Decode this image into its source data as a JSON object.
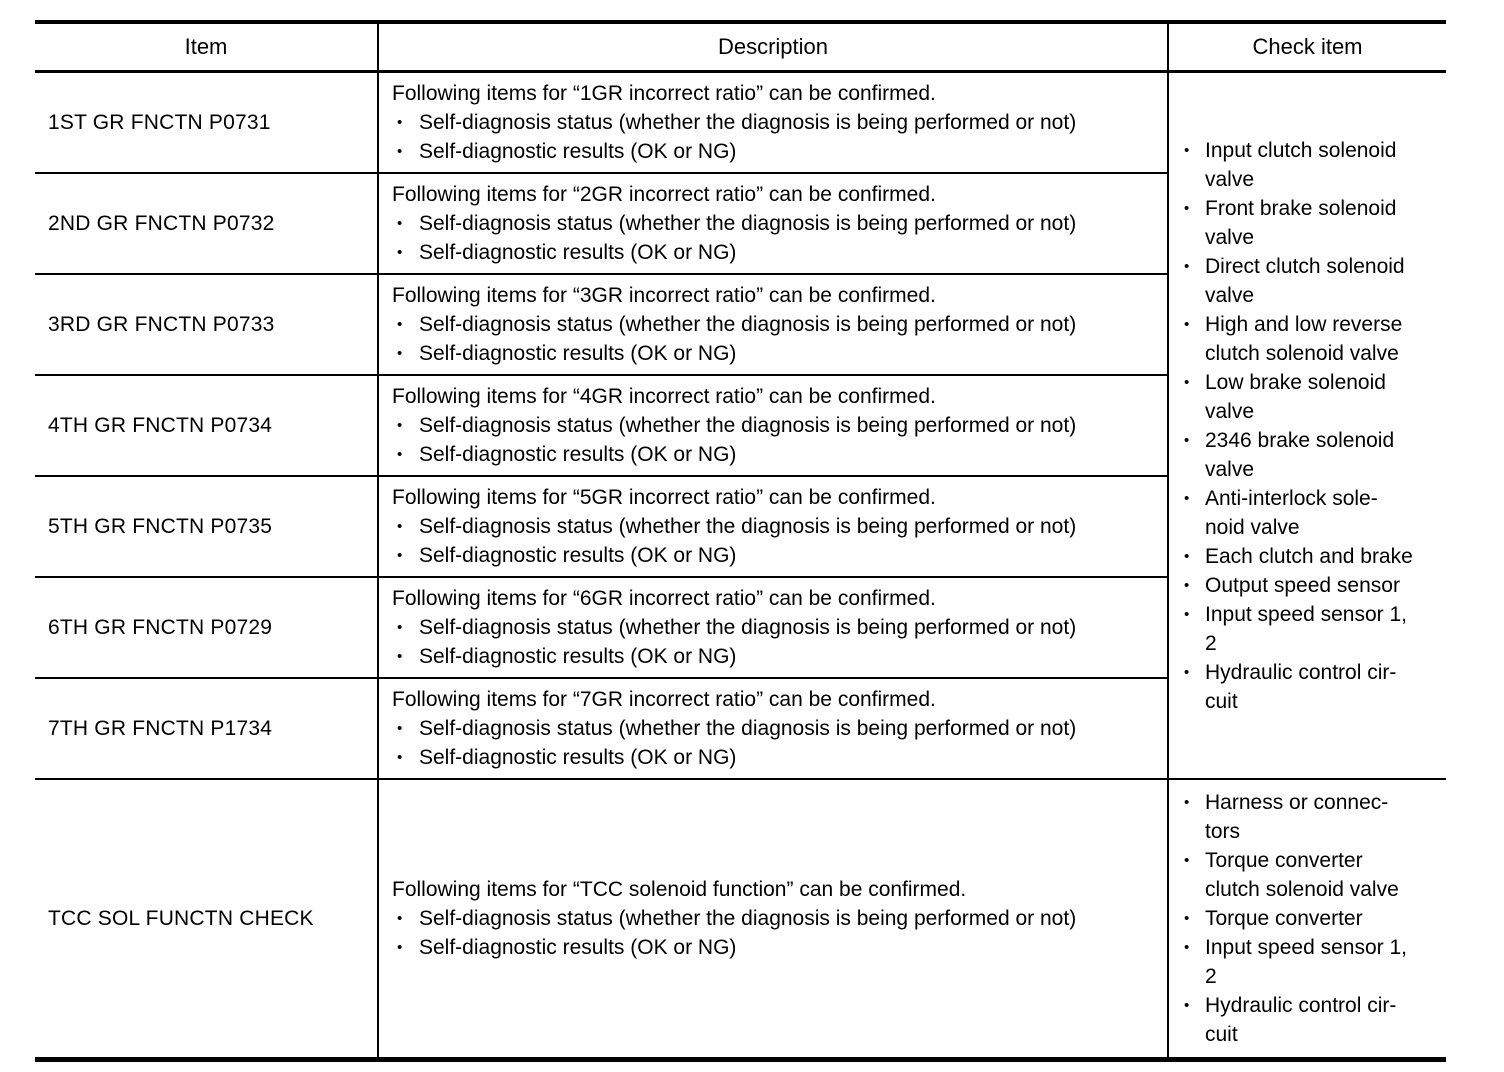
{
  "bullet_char": "•",
  "table": {
    "headers": {
      "item": "Item",
      "description": "Description",
      "check": "Check item"
    },
    "common_bullets": [
      "Self-diagnosis status (whether the diagnosis is being performed or not)",
      "Self-diagnostic results (OK or NG)"
    ],
    "rows": [
      {
        "item": "1ST GR FNCTN P0731",
        "desc_intro": "Following items for “1GR incorrect ratio” can be confirmed."
      },
      {
        "item": "2ND GR FNCTN P0732",
        "desc_intro": "Following items for “2GR incorrect ratio” can be confirmed."
      },
      {
        "item": "3RD GR FNCTN P0733",
        "desc_intro": "Following items for “3GR incorrect ratio” can be confirmed."
      },
      {
        "item": "4TH GR FNCTN P0734",
        "desc_intro": "Following items for “4GR incorrect ratio” can be confirmed."
      },
      {
        "item": "5TH GR FNCTN P0735",
        "desc_intro": "Following items for “5GR incorrect ratio” can be confirmed."
      },
      {
        "item": "6TH GR FNCTN P0729",
        "desc_intro": "Following items for “6GR incorrect ratio” can be confirmed."
      },
      {
        "item": "7TH GR FNCTN P1734",
        "desc_intro": "Following items for “7GR incorrect ratio” can be confirmed."
      },
      {
        "item": "TCC SOL FUNCTN CHECK",
        "desc_intro": "Following items for “TCC solenoid function” can be confirmed."
      }
    ],
    "check_groups": [
      {
        "items": [
          "Input clutch solenoid\nvalve",
          "Front brake solenoid\nvalve",
          "Direct clutch solenoid\nvalve",
          "High and low reverse\nclutch solenoid valve",
          "Low brake solenoid\nvalve",
          "2346 brake solenoid\nvalve",
          "Anti-interlock sole-\nnoid valve",
          "Each clutch and brake",
          "Output speed sensor",
          "Input speed sensor 1,\n2",
          "Hydraulic control cir-\ncuit"
        ]
      },
      {
        "items": [
          "Harness or connec-\ntors",
          "Torque converter\nclutch solenoid valve",
          "Torque converter",
          "Input speed sensor 1,\n2",
          "Hydraulic control cir-\ncuit"
        ]
      }
    ]
  }
}
